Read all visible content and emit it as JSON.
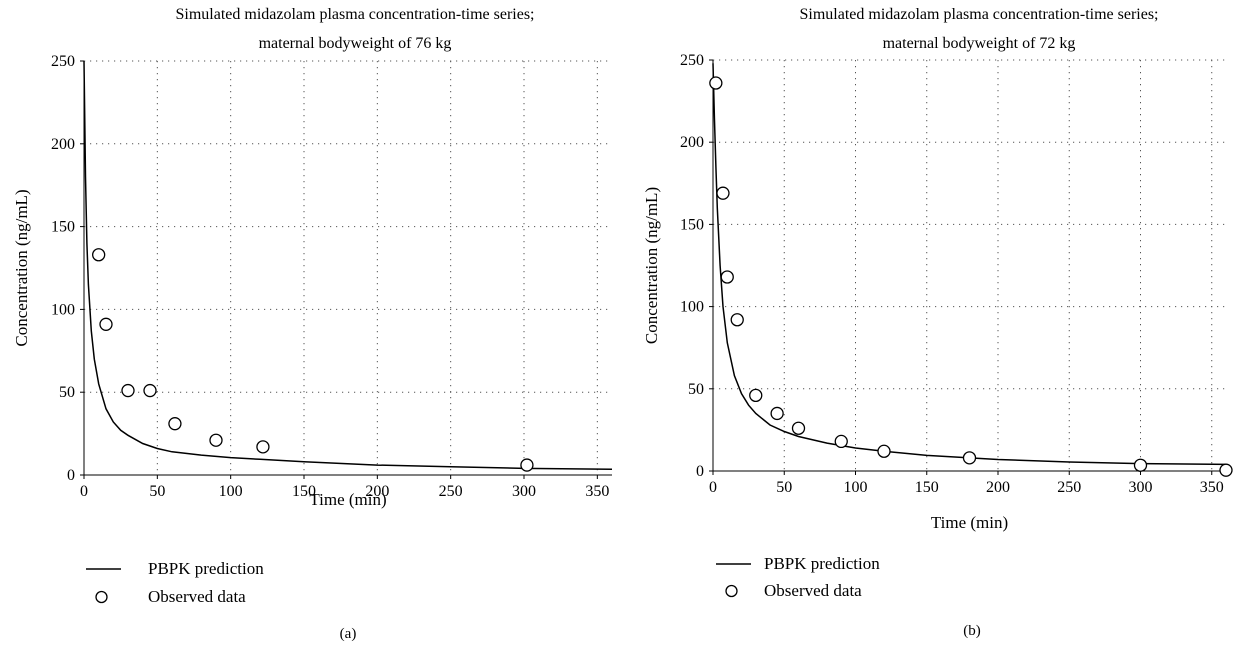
{
  "chart_data": [
    {
      "type": "line",
      "panel_label": "(a)",
      "title": "Simulated midazolam plasma concentration-time series;",
      "subtitle": "maternal bodyweight of 76 kg",
      "xlabel": "Time (min)",
      "ylabel": "Concentration (ng/mL)",
      "xlim": [
        0,
        360
      ],
      "ylim": [
        0,
        250
      ],
      "xticks": [
        "0",
        "50",
        "100",
        "150",
        "200",
        "250",
        "300",
        "350"
      ],
      "yticks": [
        "0",
        "50",
        "100",
        "150",
        "200",
        "250"
      ],
      "grid": true,
      "legend_position": "bottom-left",
      "series": [
        {
          "name": "PBPK prediction",
          "kind": "line",
          "x": [
            0,
            1,
            2,
            3,
            5,
            7,
            10,
            15,
            20,
            25,
            30,
            40,
            50,
            60,
            80,
            100,
            120,
            150,
            200,
            250,
            300,
            360
          ],
          "y": [
            250,
            180,
            140,
            115,
            87,
            70,
            55,
            40,
            32,
            27,
            24,
            19,
            16,
            14,
            12,
            10.5,
            9.5,
            8,
            6,
            5,
            4,
            3.5
          ]
        },
        {
          "name": "Observed data",
          "kind": "scatter",
          "x": [
            10,
            15,
            30,
            45,
            62,
            90,
            122,
            302
          ],
          "y": [
            133,
            91,
            51,
            51,
            31,
            21,
            17,
            6
          ]
        }
      ]
    },
    {
      "type": "line",
      "panel_label": "(b)",
      "title": "Simulated midazolam plasma concentration-time series;",
      "subtitle": "maternal bodyweight of 72 kg",
      "xlabel": "Time (min)",
      "ylabel": "Concentration (ng/mL)",
      "xlim": [
        0,
        360
      ],
      "ylim": [
        0,
        250
      ],
      "xticks": [
        "0",
        "50",
        "100",
        "150",
        "200",
        "250",
        "300",
        "350"
      ],
      "yticks": [
        "0",
        "50",
        "100",
        "150",
        "200",
        "250"
      ],
      "grid": true,
      "legend_position": "bottom-left",
      "series": [
        {
          "name": "PBPK prediction",
          "kind": "line",
          "x": [
            0,
            1,
            2,
            3,
            5,
            7,
            10,
            15,
            20,
            25,
            30,
            40,
            50,
            60,
            80,
            100,
            120,
            150,
            200,
            250,
            300,
            360
          ],
          "y": [
            248,
            215,
            185,
            160,
            125,
            100,
            78,
            58,
            47,
            40,
            35,
            28,
            24,
            21,
            17,
            14,
            12,
            9.5,
            7,
            5.5,
            4.5,
            4
          ]
        },
        {
          "name": "Observed data",
          "kind": "scatter",
          "x": [
            2,
            7,
            10,
            17,
            30,
            45,
            60,
            90,
            120,
            180,
            300,
            360
          ],
          "y": [
            236,
            169,
            118,
            92,
            46,
            35,
            26,
            18,
            12,
            8,
            3.5,
            0.5
          ]
        }
      ]
    }
  ]
}
